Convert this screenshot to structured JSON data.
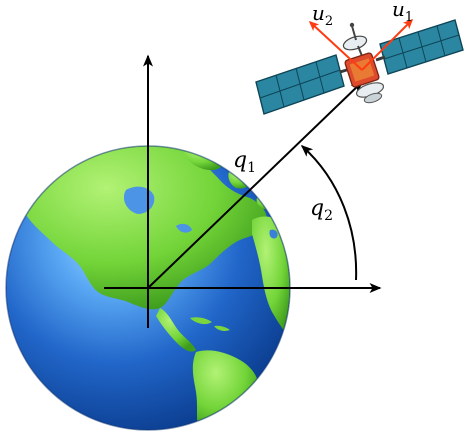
{
  "labels": {
    "q1": {
      "main": "q",
      "sub": "1"
    },
    "q2": {
      "main": "q",
      "sub": "2"
    },
    "u1": {
      "main": "u",
      "sub": "1"
    },
    "u2": {
      "main": "u",
      "sub": "2"
    }
  },
  "colors": {
    "ocean_light": "#9cd3ff",
    "ocean_mid": "#2f77d8",
    "ocean_dark": "#0b3d8f",
    "land_light": "#8fe046",
    "land_dark": "#49b525",
    "panel": "#2b86a2",
    "panel_grid": "#0e4556",
    "satellite_body": "#df4a2c",
    "satellite_metal": "#e7edf0",
    "thrust_arrow": "#ff3b12",
    "axis": "#000000"
  },
  "icons": {
    "earth": "earth-globe-icon",
    "satellite": "satellite-icon"
  }
}
